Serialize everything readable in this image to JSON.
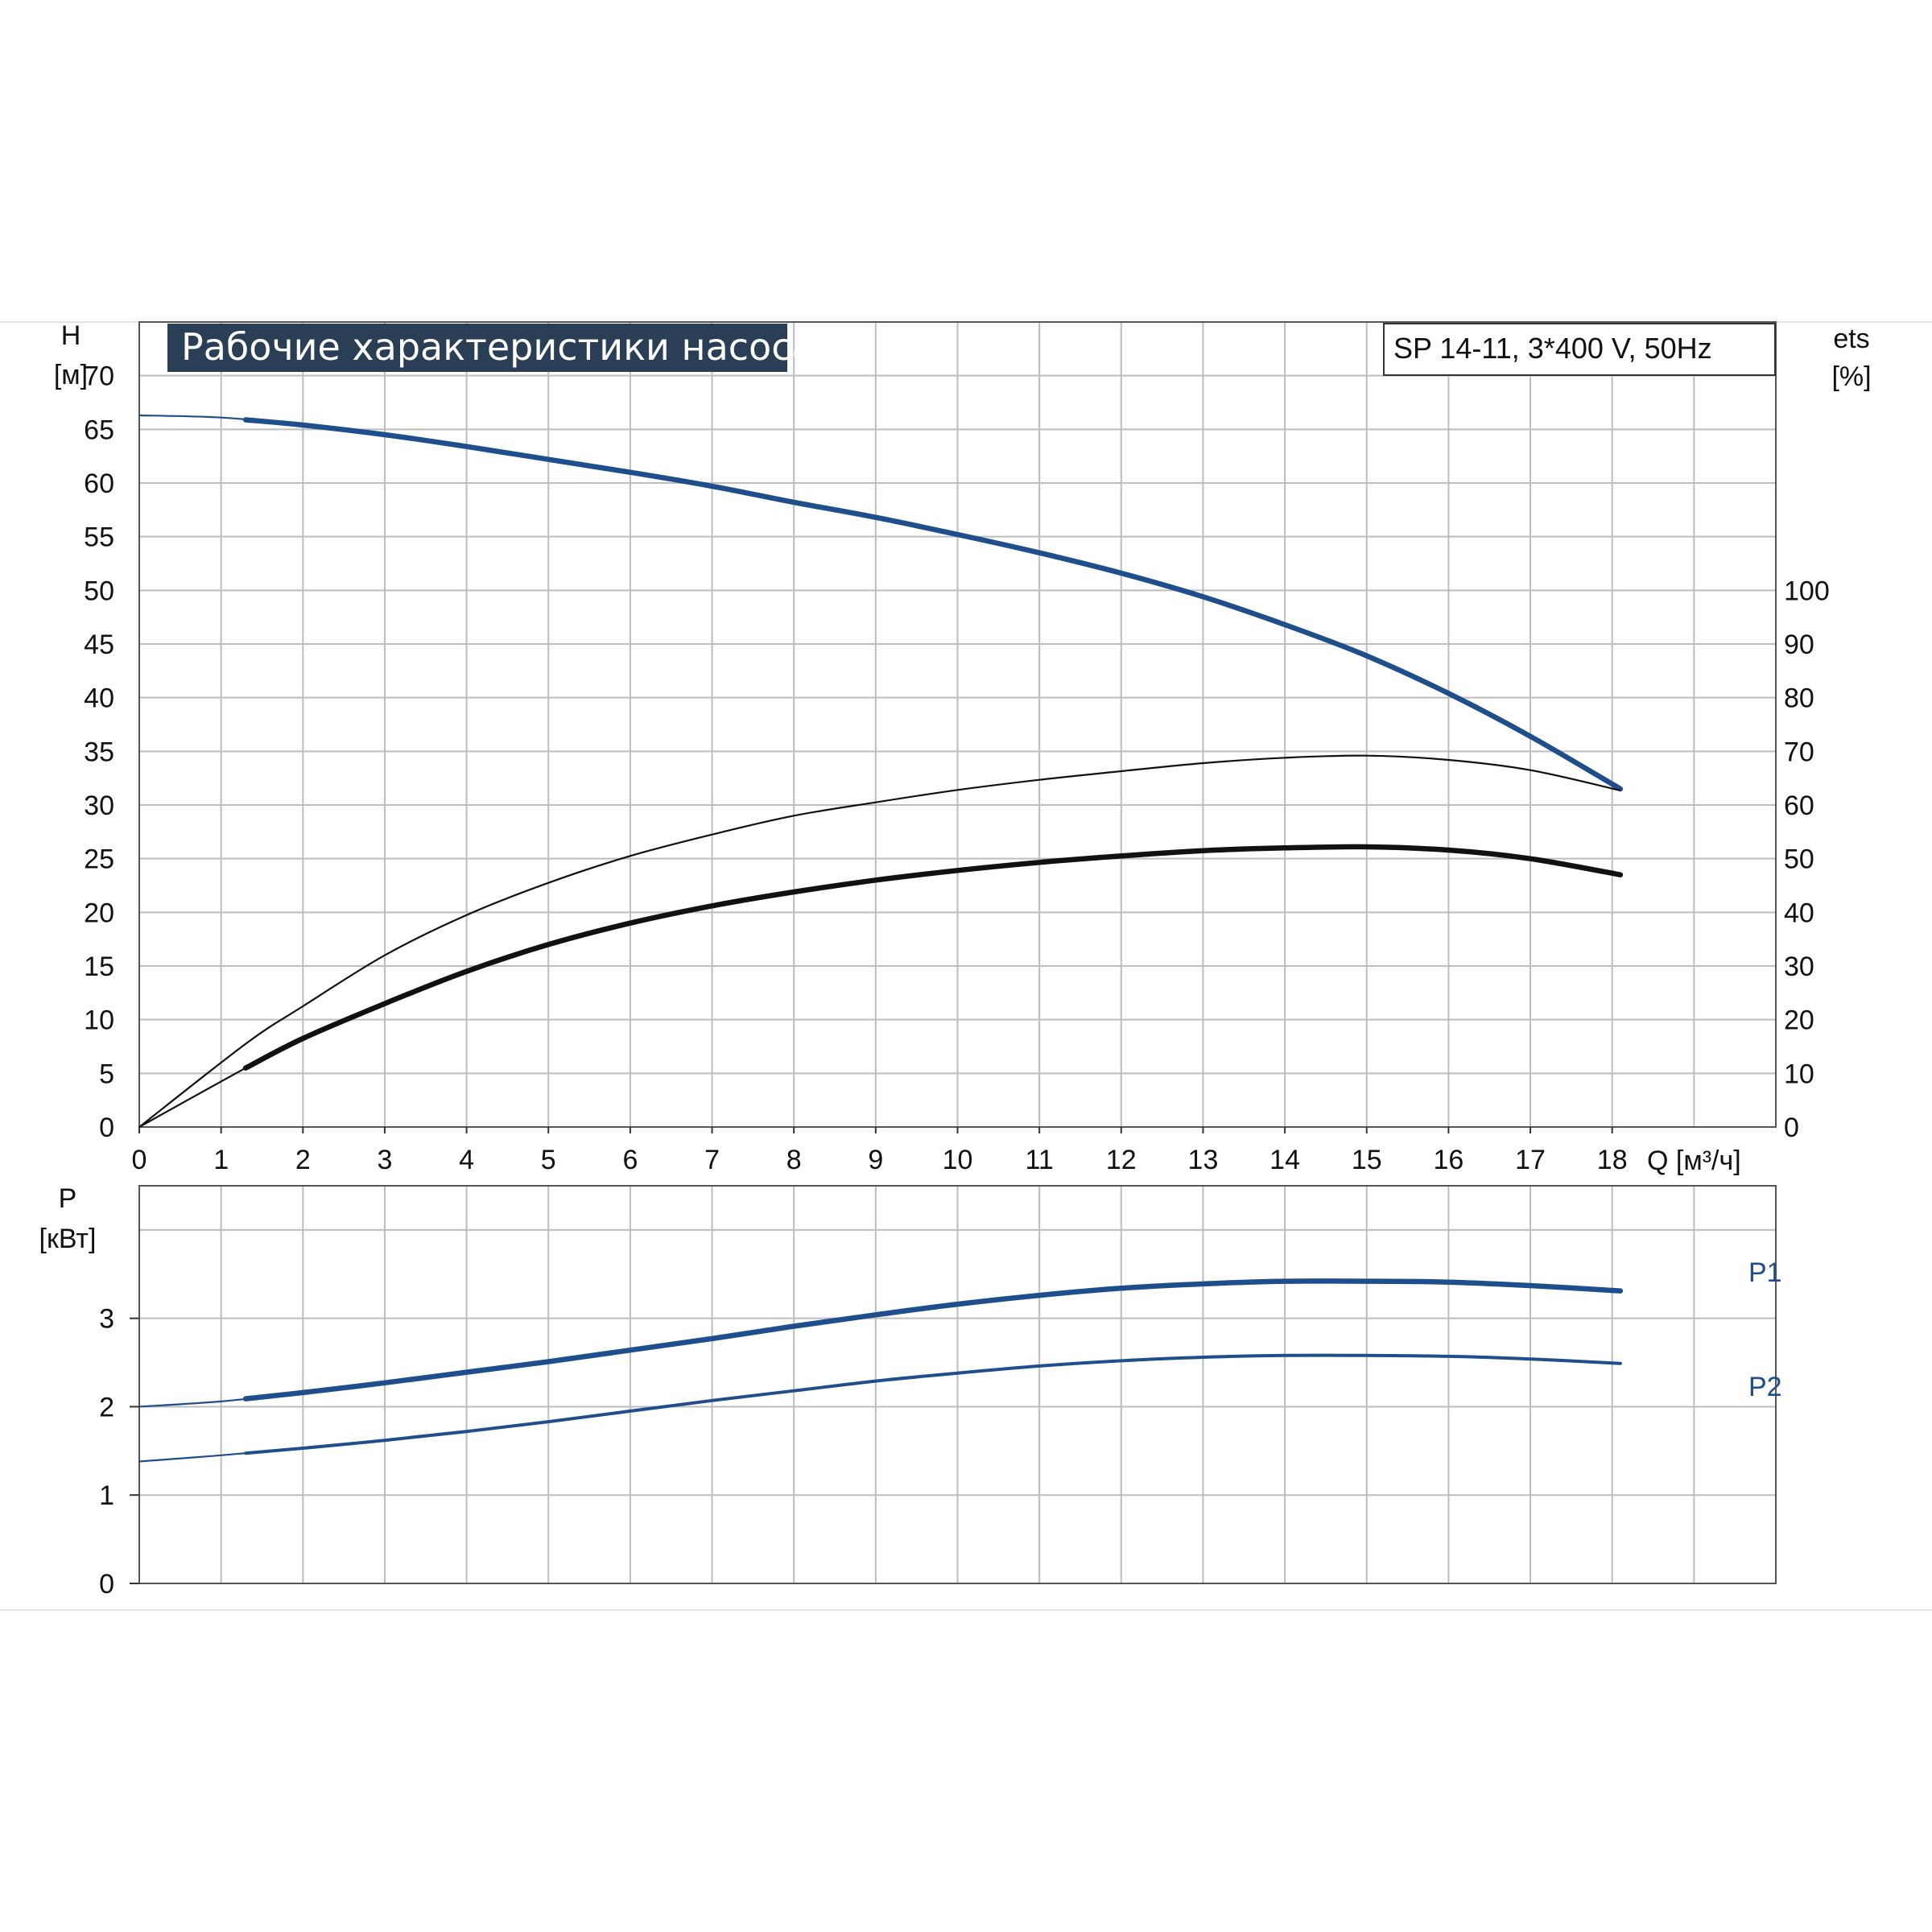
{
  "chart_data": [
    {
      "type": "line",
      "title": "Рабочие характеристики насоса",
      "subtitle": "SP 14-11, 3*400 V, 50Hz",
      "xlabel": "Q [м³/ч]",
      "ylabel_name": "H",
      "ylabel_unit": "[м]",
      "y2label_name": "ets",
      "y2label_unit": "[%]",
      "xlim": [
        0,
        20
      ],
      "ylim": [
        0,
        75
      ],
      "y2lim": [
        0,
        100
      ],
      "x_ticks": [
        "0",
        "1",
        "2",
        "3",
        "4",
        "5",
        "6",
        "7",
        "8",
        "9",
        "10",
        "11",
        "12",
        "13",
        "14",
        "15",
        "16",
        "17",
        "18"
      ],
      "y_ticks": [
        "0",
        "5",
        "10",
        "15",
        "20",
        "25",
        "30",
        "35",
        "40",
        "45",
        "50",
        "55",
        "60",
        "65",
        "70"
      ],
      "y2_ticks": [
        "0",
        "10",
        "20",
        "30",
        "40",
        "50",
        "60",
        "70",
        "80",
        "90",
        "100"
      ],
      "grid": true,
      "colors": {
        "blue": "#1f4e8c",
        "black": "#111111",
        "title_bg": "#2a3e55"
      },
      "series": [
        {
          "axis": "left",
          "color": "#1f4e8c",
          "x": [
            0,
            1,
            2,
            3,
            4,
            5,
            6,
            7,
            8,
            9,
            10,
            11,
            12,
            13,
            14,
            15,
            16,
            17,
            18.1
          ],
          "y": [
            66.3,
            66.1,
            65.4,
            64.5,
            63.4,
            62.2,
            61.0,
            59.7,
            58.2,
            56.8,
            55.2,
            53.5,
            51.6,
            49.4,
            46.8,
            43.9,
            40.4,
            36.4,
            31.5
          ],
          "bold_from": 1.3
        },
        {
          "axis": "right",
          "color": "#111111",
          "x": [
            0,
            1.3,
            2,
            3,
            4,
            5,
            6,
            7,
            8,
            9,
            10,
            11,
            12,
            13,
            14,
            15,
            16,
            17,
            18.1
          ],
          "y": [
            0,
            15.5,
            22.5,
            32,
            39.5,
            45.5,
            50.5,
            54.5,
            58,
            60.5,
            62.8,
            64.7,
            66.3,
            67.8,
            68.8,
            69.2,
            68.4,
            66.5,
            62.7
          ],
          "bold_from": 18.1
        },
        {
          "axis": "right",
          "color": "#111111",
          "x": [
            0,
            1.3,
            2,
            3,
            4,
            5,
            6,
            7,
            8,
            9,
            10,
            11,
            12,
            13,
            14,
            15,
            16,
            17,
            18.1
          ],
          "y": [
            0,
            11,
            16.5,
            23,
            29,
            34,
            38,
            41.2,
            43.8,
            46,
            47.8,
            49.3,
            50.5,
            51.5,
            52,
            52.2,
            51.6,
            50,
            47
          ],
          "bold_from": 1.3
        }
      ]
    },
    {
      "type": "line",
      "title": "",
      "xlabel": "",
      "ylabel_name": "P",
      "ylabel_unit": "[кВт]",
      "xlim": [
        0,
        20
      ],
      "ylim": [
        0,
        4.5
      ],
      "y_ticks": [
        "0",
        "1",
        "2",
        "3"
      ],
      "grid": true,
      "series": [
        {
          "name": "P1",
          "color": "#1f4e8c",
          "x": [
            0,
            1,
            2,
            3,
            4,
            5,
            6,
            7,
            8,
            9,
            10,
            11,
            12,
            13,
            14,
            15,
            16,
            17,
            18.1
          ],
          "y": [
            2.0,
            2.06,
            2.16,
            2.27,
            2.39,
            2.51,
            2.64,
            2.77,
            2.91,
            3.04,
            3.16,
            3.26,
            3.34,
            3.39,
            3.42,
            3.42,
            3.41,
            3.37,
            3.31
          ],
          "bold_from": 1.3
        },
        {
          "name": "P2",
          "color": "#1f4e8c",
          "x": [
            0,
            1,
            2,
            3,
            4,
            5,
            6,
            7,
            8,
            9,
            10,
            11,
            12,
            13,
            14,
            15,
            16,
            17,
            18.1
          ],
          "y": [
            1.38,
            1.45,
            1.53,
            1.62,
            1.72,
            1.83,
            1.95,
            2.07,
            2.18,
            2.29,
            2.38,
            2.46,
            2.52,
            2.56,
            2.58,
            2.58,
            2.57,
            2.54,
            2.49
          ],
          "bold_from": 1.3
        }
      ]
    }
  ]
}
